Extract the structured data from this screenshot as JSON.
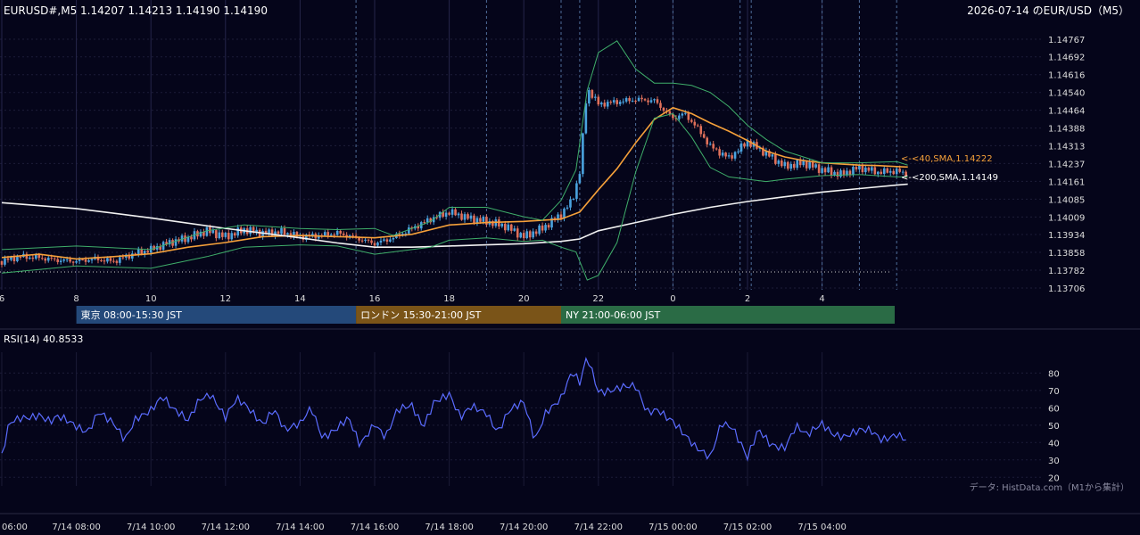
{
  "header": {
    "symbol_line": "EURUSD#,M5 1.14207 1.14213 1.14190 1.14190",
    "title": "2026-07-14 のEUR/USD（M5）"
  },
  "colors": {
    "background": "#05051a",
    "bull": "#4aa3df",
    "bear": "#e0705a",
    "sma40": "#f5a03a",
    "sma200": "#f2f2f2",
    "bands": "#3fae6a",
    "rsi": "#5b6cff",
    "tokyo": "#24497a",
    "london": "#7a5418",
    "ny": "#2a6b45"
  },
  "sessions": [
    {
      "label": "東京 08:00-15:30 JST",
      "start": 8.0,
      "end": 15.5
    },
    {
      "label": "ロンドン 15:30-21:00 JST",
      "start": 15.5,
      "end": 21.0
    },
    {
      "label": "NY 21:00-06:00 JST",
      "start": 21.0,
      "end": 30.0
    }
  ],
  "price_ticks": [
    "1.14767",
    "1.14692",
    "1.14616",
    "1.14540",
    "1.14464",
    "1.14388",
    "1.14313",
    "1.14237",
    "1.14161",
    "1.14085",
    "1.14009",
    "1.13934",
    "1.13858",
    "1.13782",
    "1.13706"
  ],
  "x_hour_labels": [
    "6",
    "8",
    "10",
    "12",
    "14",
    "16",
    "18",
    "20",
    "22",
    "0",
    "2",
    "4"
  ],
  "bottom_time_labels": [
    "06:00",
    "7/14 08:00",
    "7/14 10:00",
    "7/14 12:00",
    "7/14 14:00",
    "7/14 16:00",
    "7/14 18:00",
    "7/14 20:00",
    "7/14 22:00",
    "7/15 00:00",
    "7/15 02:00",
    "7/15 04:00"
  ],
  "rsi_panel": {
    "label": "RSI(14) 40.8533",
    "ticks": [
      "80",
      "70",
      "60",
      "50",
      "40",
      "30",
      "20"
    ],
    "source": "データ: HistData.com（M1から集計）"
  },
  "chart_data": [
    {
      "type": "line",
      "title": "",
      "x_unit": "JST hour (6.0 = 7/14 06:00, 24.0 = 7/15 00:00)",
      "ylim": [
        1.13706,
        1.14767
      ],
      "xlim": [
        6.0,
        30.3
      ],
      "series": [
        {
          "name": "<-<40,SMA,1.14222",
          "x": [
            6.0,
            7.0,
            8.0,
            9.0,
            10.0,
            11.0,
            12.0,
            13.0,
            14.0,
            15.0,
            16.0,
            17.0,
            18.0,
            19.0,
            20.0,
            21.0,
            21.5,
            22.0,
            22.5,
            23.0,
            23.5,
            24.0,
            24.5,
            25.0,
            25.5,
            26.0,
            26.5,
            27.0,
            27.5,
            28.0,
            28.5,
            29.0,
            29.5,
            30.0,
            30.3
          ],
          "y": [
            1.13836,
            1.1385,
            1.1383,
            1.1384,
            1.13852,
            1.1388,
            1.139,
            1.13925,
            1.1393,
            1.13925,
            1.1392,
            1.13935,
            1.13975,
            1.13985,
            1.1399,
            1.14,
            1.1403,
            1.14125,
            1.14215,
            1.14325,
            1.14425,
            1.14475,
            1.1445,
            1.1441,
            1.14375,
            1.14335,
            1.1429,
            1.14265,
            1.1425,
            1.1424,
            1.14235,
            1.1423,
            1.14228,
            1.14224,
            1.14222
          ]
        },
        {
          "name": "<-<200,SMA,1.14149",
          "x": [
            6.0,
            8.0,
            10.0,
            12.0,
            14.0,
            15.0,
            16.0,
            17.0,
            18.0,
            19.0,
            20.0,
            21.0,
            21.5,
            22.0,
            23.0,
            24.0,
            25.0,
            26.0,
            27.0,
            28.0,
            29.0,
            30.0,
            30.3
          ],
          "y": [
            1.1407,
            1.14045,
            1.14005,
            1.1396,
            1.1392,
            1.13898,
            1.1388,
            1.1388,
            1.13885,
            1.1389,
            1.13895,
            1.13905,
            1.13915,
            1.1395,
            1.13985,
            1.1402,
            1.1405,
            1.14075,
            1.14095,
            1.14115,
            1.1413,
            1.14145,
            1.14149
          ]
        },
        {
          "name": "upper-band",
          "x": [
            6.0,
            8.0,
            10.0,
            11.5,
            12.5,
            14.0,
            15.0,
            16.0,
            16.5,
            17.5,
            18.0,
            19.0,
            20.0,
            20.5,
            21.0,
            21.4,
            21.7,
            22.0,
            22.5,
            23.0,
            23.5,
            24.0,
            24.5,
            25.0,
            25.5,
            26.0,
            26.5,
            27.0,
            28.0,
            29.0,
            30.0,
            30.3
          ],
          "y": [
            1.1387,
            1.13885,
            1.1387,
            1.1395,
            1.13975,
            1.1396,
            1.13955,
            1.1396,
            1.1393,
            1.1399,
            1.1405,
            1.1405,
            1.1401,
            1.13995,
            1.1408,
            1.1421,
            1.1455,
            1.1471,
            1.1476,
            1.1464,
            1.1458,
            1.1458,
            1.1457,
            1.1454,
            1.1448,
            1.144,
            1.1434,
            1.1429,
            1.1424,
            1.1424,
            1.14245,
            1.1423
          ]
        },
        {
          "name": "lower-band",
          "x": [
            6.0,
            8.0,
            10.0,
            11.5,
            12.5,
            14.0,
            15.0,
            16.0,
            16.5,
            17.5,
            18.0,
            19.0,
            20.0,
            20.5,
            21.0,
            21.4,
            21.7,
            22.0,
            22.5,
            23.0,
            23.5,
            24.0,
            24.5,
            25.0,
            25.5,
            26.0,
            26.5,
            27.0,
            28.0,
            29.0,
            30.0,
            30.3
          ],
          "y": [
            1.1377,
            1.138,
            1.1379,
            1.1384,
            1.1388,
            1.1389,
            1.13885,
            1.1385,
            1.1386,
            1.1388,
            1.1391,
            1.1392,
            1.13905,
            1.1391,
            1.1388,
            1.1386,
            1.1374,
            1.1376,
            1.139,
            1.142,
            1.1443,
            1.1445,
            1.1435,
            1.1422,
            1.1418,
            1.1417,
            1.1416,
            1.1417,
            1.14185,
            1.1419,
            1.1418,
            1.1418
          ]
        },
        {
          "name": "close",
          "x": [
            6.0,
            6.5,
            7.0,
            7.5,
            8.0,
            8.5,
            9.0,
            9.5,
            10.0,
            10.5,
            11.0,
            11.5,
            12.0,
            12.5,
            13.0,
            13.5,
            14.0,
            14.5,
            15.0,
            15.5,
            16.0,
            16.5,
            17.0,
            17.5,
            18.0,
            18.5,
            19.0,
            19.5,
            20.0,
            20.5,
            21.0,
            21.3,
            21.5,
            21.7,
            22.0,
            22.5,
            23.0,
            23.5,
            24.0,
            24.3,
            24.6,
            25.0,
            25.5,
            26.0,
            26.5,
            27.0,
            27.5,
            28.0,
            28.5,
            29.0,
            29.5,
            30.0,
            30.3
          ],
          "y": [
            1.1382,
            1.1384,
            1.13835,
            1.13825,
            1.1382,
            1.1383,
            1.1382,
            1.1385,
            1.1387,
            1.139,
            1.1392,
            1.1395,
            1.13925,
            1.13955,
            1.1394,
            1.13945,
            1.13925,
            1.1393,
            1.1394,
            1.1392,
            1.13895,
            1.1392,
            1.1396,
            1.14,
            1.1403,
            1.14005,
            1.1399,
            1.1397,
            1.13925,
            1.1396,
            1.1402,
            1.1408,
            1.142,
            1.1456,
            1.1449,
            1.145,
            1.1451,
            1.14505,
            1.1443,
            1.1445,
            1.144,
            1.1431,
            1.1426,
            1.1433,
            1.1428,
            1.14225,
            1.1424,
            1.1421,
            1.1419,
            1.1422,
            1.142,
            1.14205,
            1.1419
          ]
        }
      ]
    },
    {
      "type": "line",
      "title": "",
      "ylim": [
        15,
        92
      ],
      "xlim": [
        6.0,
        30.3
      ],
      "series": [
        {
          "name": "",
          "x": [
            6.0,
            6.2,
            6.5,
            7.0,
            7.3,
            7.5,
            8.0,
            8.3,
            8.6,
            9.0,
            9.3,
            9.6,
            10.0,
            10.3,
            10.6,
            11.0,
            11.3,
            11.6,
            12.0,
            12.3,
            12.6,
            13.0,
            13.3,
            13.6,
            14.0,
            14.3,
            14.6,
            15.0,
            15.3,
            15.6,
            16.0,
            16.3,
            16.6,
            17.0,
            17.3,
            17.6,
            18.0,
            18.3,
            18.6,
            19.0,
            19.3,
            19.6,
            20.0,
            20.3,
            20.6,
            21.0,
            21.3,
            21.5,
            21.7,
            22.0,
            22.3,
            22.6,
            23.0,
            23.3,
            23.6,
            24.0,
            24.3,
            24.6,
            25.0,
            25.3,
            25.6,
            26.0,
            26.3,
            26.6,
            27.0,
            27.3,
            27.6,
            28.0,
            28.3,
            28.6,
            29.0,
            29.3,
            29.6,
            30.0,
            30.3
          ],
          "y": [
            31,
            50,
            54,
            57,
            52,
            54,
            49,
            47,
            59,
            50,
            40,
            54,
            60,
            67,
            58,
            52,
            66,
            69,
            54,
            64,
            60,
            52,
            60,
            46,
            50,
            61,
            44,
            48,
            53,
            38,
            52,
            44,
            58,
            60,
            49,
            65,
            68,
            53,
            60,
            58,
            47,
            58,
            62,
            41,
            59,
            66,
            80,
            73,
            89,
            70,
            71,
            72,
            71,
            57,
            60,
            53,
            44,
            36,
            32,
            53,
            49,
            30,
            47,
            40,
            38,
            49,
            43,
            51,
            46,
            44,
            46,
            46,
            42,
            46,
            41
          ]
        }
      ]
    }
  ]
}
